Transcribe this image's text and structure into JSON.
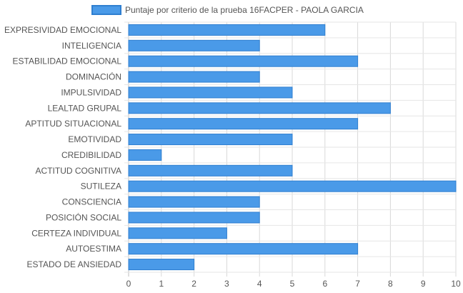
{
  "chart_data": {
    "type": "bar",
    "orientation": "horizontal",
    "categories": [
      "EXPRESIVIDAD EMOCIONAL",
      "INTELIGENCIA",
      "ESTABILIDAD EMOCIONAL",
      "DOMINACIÓN",
      "IMPULSIVIDAD",
      "LEALTAD GRUPAL",
      "APTITUD SITUACIONAL",
      "EMOTIVIDAD",
      "CREDIBILIDAD",
      "ACTITUD COGNITIVA",
      "SUTILEZA",
      "CONSCIENCIA",
      "POSICIÓN SOCIAL",
      "CERTEZA INDIVIDUAL",
      "AUTOESTIMA",
      "ESTADO DE ANSIEDAD"
    ],
    "series": [
      {
        "name": "Puntaje por criterio de la prueba 16FACPER - PAOLA GARCIA",
        "values": [
          6,
          4,
          7,
          4,
          5,
          8,
          7,
          5,
          1,
          5,
          10,
          4,
          4,
          3,
          7,
          2
        ],
        "color": "#4a9ae8",
        "border_color": "#2f7fd0"
      }
    ],
    "xlim": [
      0,
      10
    ],
    "x_ticks": [
      "0",
      "1",
      "2",
      "3",
      "4",
      "5",
      "6",
      "7",
      "8",
      "9",
      "10"
    ],
    "grid": true,
    "legend_position": "top"
  }
}
